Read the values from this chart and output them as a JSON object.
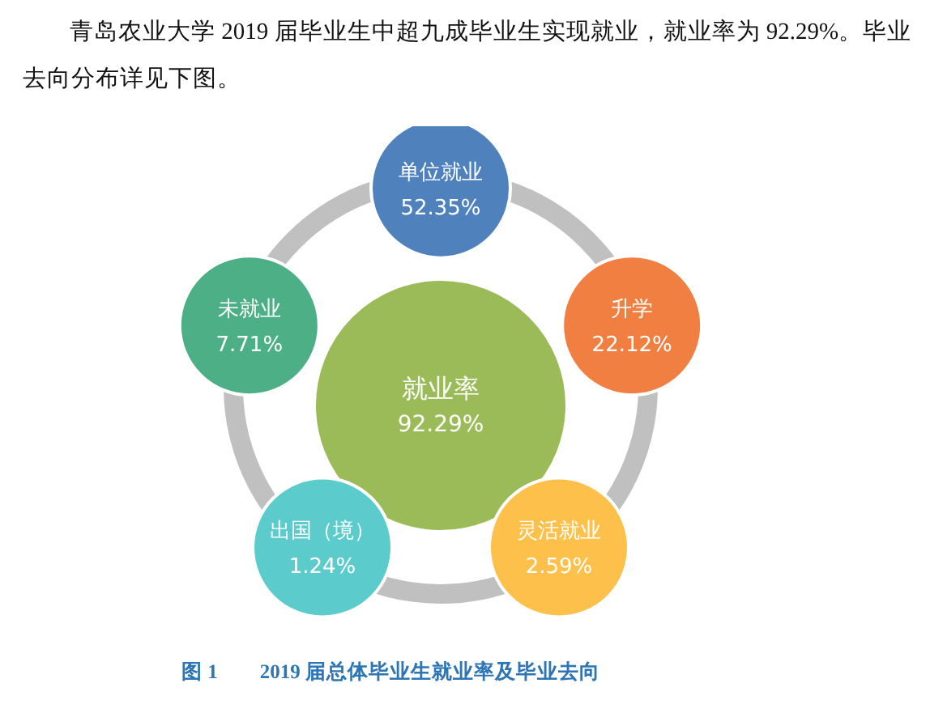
{
  "chart_data": {
    "type": "other",
    "title": "图 1　　2019 届总体毕业生就业率及毕业去向",
    "annotations": [
      "青岛农业大学 2019 届毕业生中超九成毕业生实现就业，就业率为 92.29%。毕业去向分布详见下图。"
    ],
    "categories": [
      "就业率",
      "单位就业",
      "升学",
      "灵活就业",
      "出国（境）",
      "未就业"
    ],
    "values": [
      92.29,
      52.35,
      22.12,
      2.59,
      1.24,
      7.71
    ],
    "value_labels": [
      "92.29%",
      "52.35%",
      "22.12%",
      "2.59%",
      "1.24%",
      "7.71%"
    ],
    "colors": [
      "#9bbb59",
      "#4f81bd",
      "#f07f41",
      "#fdc14b",
      "#5ccbcb",
      "#4caf85"
    ]
  }
}
